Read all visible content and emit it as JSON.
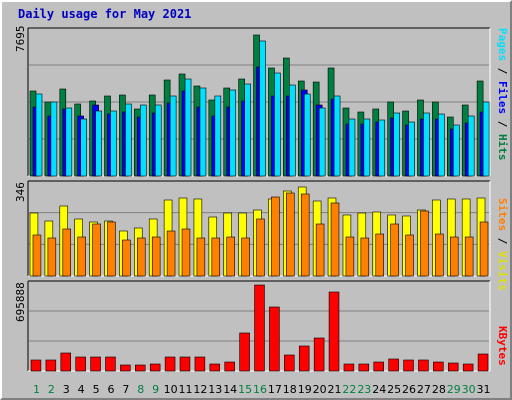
{
  "title": "Daily usage for May 2021",
  "colors": {
    "hits": "#008040",
    "files": "#0000ff",
    "pages": "#00e0ff",
    "visits": "#ffff00",
    "sites": "#ff8000",
    "kbytes": "#ff0000",
    "weekend_day": "#008040",
    "weekday": "#000000"
  },
  "chart_data": [
    {
      "type": "bar",
      "panel": "hits-files-pages",
      "categories": [
        "1",
        "2",
        "3",
        "4",
        "5",
        "6",
        "7",
        "8",
        "9",
        "10",
        "11",
        "12",
        "13",
        "14",
        "15",
        "16",
        "17",
        "18",
        "19",
        "20",
        "21",
        "22",
        "23",
        "24",
        "25",
        "26",
        "27",
        "28",
        "29",
        "30",
        "31"
      ],
      "ymax_label": "7695",
      "ylim": [
        0,
        7695
      ],
      "right_label": {
        "parts": [
          "Pages",
          "Files",
          "Hits"
        ],
        "separator": " / "
      },
      "series": [
        {
          "name": "Hits",
          "values": [
            4550,
            3930,
            4650,
            3870,
            4030,
            4290,
            4340,
            3590,
            4340,
            5110,
            5460,
            4810,
            4080,
            4700,
            5160,
            7530,
            5760,
            6300,
            5060,
            5000,
            5790,
            3630,
            3420,
            3600,
            3960,
            3480,
            4040,
            3970,
            3140,
            3810,
            5070
          ]
        },
        {
          "name": "Files",
          "values": [
            3700,
            3190,
            3600,
            3220,
            3800,
            3300,
            3410,
            3170,
            3380,
            3900,
            4550,
            3710,
            3190,
            3670,
            3990,
            5810,
            4300,
            4280,
            4620,
            3820,
            4110,
            2770,
            2800,
            2860,
            3090,
            2710,
            3070,
            3070,
            2490,
            2840,
            3400
          ]
        },
        {
          "name": "Pages",
          "values": [
            4360,
            3930,
            3650,
            3070,
            3500,
            3500,
            3870,
            3790,
            3790,
            4250,
            5190,
            4680,
            4250,
            4580,
            4930,
            7200,
            5500,
            4860,
            4370,
            3650,
            4250,
            3070,
            3070,
            3000,
            3360,
            2870,
            3360,
            3290,
            2720,
            3220,
            3930
          ]
        }
      ]
    },
    {
      "type": "bar",
      "panel": "visits-sites",
      "categories": [
        "1",
        "2",
        "3",
        "4",
        "5",
        "6",
        "7",
        "8",
        "9",
        "10",
        "11",
        "12",
        "13",
        "14",
        "15",
        "16",
        "17",
        "18",
        "19",
        "20",
        "21",
        "22",
        "23",
        "24",
        "25",
        "26",
        "27",
        "28",
        "29",
        "30",
        "31"
      ],
      "ymax_label": "346",
      "ylim": [
        0,
        346
      ],
      "right_label": {
        "parts": [
          "Sites",
          "Visits"
        ],
        "separator": " / "
      },
      "series": [
        {
          "name": "Visits",
          "values": [
            240,
            210,
            268,
            215,
            205,
            208,
            172,
            183,
            218,
            290,
            296,
            292,
            226,
            240,
            240,
            252,
            292,
            324,
            338,
            286,
            295,
            232,
            238,
            245,
            232,
            228,
            252,
            290,
            292,
            292,
            298
          ]
        },
        {
          "name": "Sites",
          "values": [
            156,
            144,
            180,
            150,
            196,
            204,
            138,
            144,
            150,
            170,
            180,
            144,
            144,
            148,
            146,
            216,
            300,
            316,
            310,
            198,
            276,
            150,
            144,
            158,
            196,
            154,
            248,
            158,
            150,
            150,
            204
          ]
        }
      ]
    },
    {
      "type": "bar",
      "panel": "kbytes",
      "categories": [
        "1",
        "2",
        "3",
        "4",
        "5",
        "6",
        "7",
        "8",
        "9",
        "10",
        "11",
        "12",
        "13",
        "14",
        "15",
        "16",
        "17",
        "18",
        "19",
        "20",
        "21",
        "22",
        "23",
        "24",
        "25",
        "26",
        "27",
        "28",
        "29",
        "30",
        "31"
      ],
      "ymax_label": "695888",
      "ylim": [
        0,
        695888
      ],
      "right_label": {
        "parts": [
          "KBytes"
        ],
        "separator": ""
      },
      "series": [
        {
          "name": "KBytes",
          "values": [
            90000,
            90000,
            147000,
            110000,
            110000,
            110000,
            50000,
            50000,
            57000,
            110000,
            110000,
            115000,
            57000,
            70000,
            305000,
            695888,
            520000,
            130000,
            200000,
            270000,
            640000,
            58000,
            58000,
            70000,
            100000,
            85000,
            85000,
            72000,
            68000,
            58000,
            140000
          ]
        }
      ]
    }
  ],
  "weekend_days": [
    1,
    2,
    8,
    9,
    15,
    16,
    22,
    23,
    29,
    30
  ]
}
